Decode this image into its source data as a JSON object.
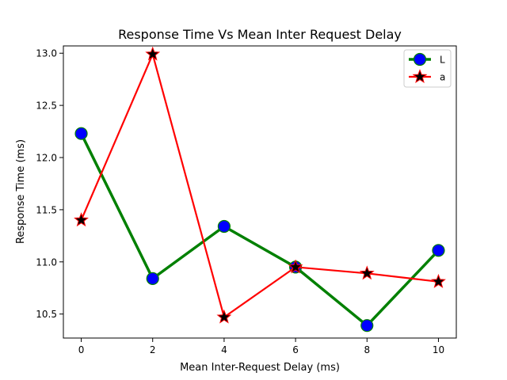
{
  "chart_data": {
    "type": "line",
    "title": "Response Time Vs Mean Inter Request Delay",
    "xlabel": "Mean Inter-Request Delay (ms)",
    "ylabel": "Response Time (ms)",
    "xlim": [
      -0.5,
      10.5
    ],
    "ylim": [
      10.27,
      13.07
    ],
    "xticks": [
      0,
      2,
      4,
      6,
      8,
      10
    ],
    "xtick_labels": [
      "0",
      "2",
      "4",
      "6",
      "8",
      "10"
    ],
    "yticks": [
      10.5,
      11.0,
      11.5,
      12.0,
      12.5,
      13.0
    ],
    "ytick_labels": [
      "10.5",
      "11.0",
      "11.5",
      "12.0",
      "12.5",
      "13.0"
    ],
    "grid": false,
    "legend_position": "top-right",
    "x": [
      0,
      2,
      4,
      6,
      8,
      10
    ],
    "series": [
      {
        "name": "L",
        "values": [
          12.23,
          10.84,
          11.34,
          10.95,
          10.39,
          11.11
        ],
        "color": "#008000",
        "marker": "circle",
        "marker_face": "#0000ff",
        "marker_edge": "#008000"
      },
      {
        "name": "a",
        "values": [
          11.4,
          12.99,
          10.47,
          10.95,
          10.89,
          10.81
        ],
        "color": "#ff0000",
        "marker": "star",
        "marker_face": "#000000",
        "marker_edge": "#ff0000"
      }
    ]
  }
}
